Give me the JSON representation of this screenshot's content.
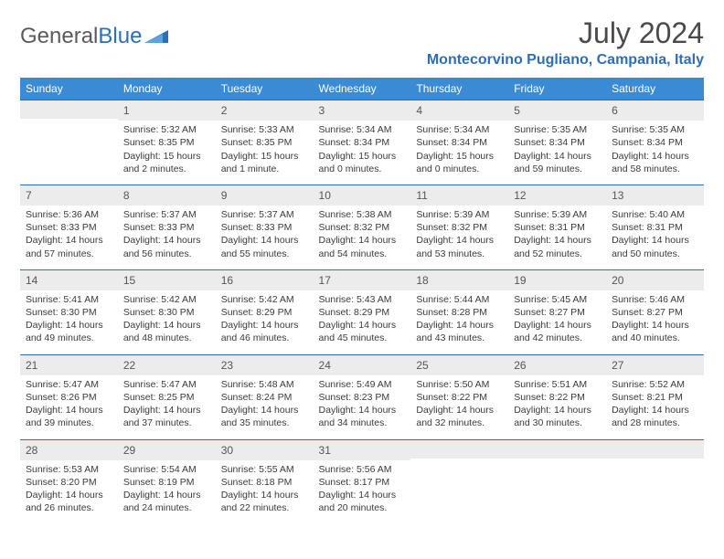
{
  "logo": {
    "text1": "General",
    "text2": "Blue"
  },
  "header": {
    "month_title": "July 2024",
    "location": "Montecorvino Pugliano, Campania, Italy"
  },
  "colors": {
    "header_blue": "#3b8bd4",
    "accent_blue": "#2d6fb5",
    "daynum_bg": "#ececec",
    "text_gray": "#3a3a3a"
  },
  "days_of_week": [
    "Sunday",
    "Monday",
    "Tuesday",
    "Wednesday",
    "Thursday",
    "Friday",
    "Saturday"
  ],
  "weeks": [
    [
      null,
      {
        "n": "1",
        "sunrise": "Sunrise: 5:32 AM",
        "sunset": "Sunset: 8:35 PM",
        "day1": "Daylight: 15 hours",
        "day2": "and 2 minutes."
      },
      {
        "n": "2",
        "sunrise": "Sunrise: 5:33 AM",
        "sunset": "Sunset: 8:35 PM",
        "day1": "Daylight: 15 hours",
        "day2": "and 1 minute."
      },
      {
        "n": "3",
        "sunrise": "Sunrise: 5:34 AM",
        "sunset": "Sunset: 8:34 PM",
        "day1": "Daylight: 15 hours",
        "day2": "and 0 minutes."
      },
      {
        "n": "4",
        "sunrise": "Sunrise: 5:34 AM",
        "sunset": "Sunset: 8:34 PM",
        "day1": "Daylight: 15 hours",
        "day2": "and 0 minutes."
      },
      {
        "n": "5",
        "sunrise": "Sunrise: 5:35 AM",
        "sunset": "Sunset: 8:34 PM",
        "day1": "Daylight: 14 hours",
        "day2": "and 59 minutes."
      },
      {
        "n": "6",
        "sunrise": "Sunrise: 5:35 AM",
        "sunset": "Sunset: 8:34 PM",
        "day1": "Daylight: 14 hours",
        "day2": "and 58 minutes."
      }
    ],
    [
      {
        "n": "7",
        "sunrise": "Sunrise: 5:36 AM",
        "sunset": "Sunset: 8:33 PM",
        "day1": "Daylight: 14 hours",
        "day2": "and 57 minutes."
      },
      {
        "n": "8",
        "sunrise": "Sunrise: 5:37 AM",
        "sunset": "Sunset: 8:33 PM",
        "day1": "Daylight: 14 hours",
        "day2": "and 56 minutes."
      },
      {
        "n": "9",
        "sunrise": "Sunrise: 5:37 AM",
        "sunset": "Sunset: 8:33 PM",
        "day1": "Daylight: 14 hours",
        "day2": "and 55 minutes."
      },
      {
        "n": "10",
        "sunrise": "Sunrise: 5:38 AM",
        "sunset": "Sunset: 8:32 PM",
        "day1": "Daylight: 14 hours",
        "day2": "and 54 minutes."
      },
      {
        "n": "11",
        "sunrise": "Sunrise: 5:39 AM",
        "sunset": "Sunset: 8:32 PM",
        "day1": "Daylight: 14 hours",
        "day2": "and 53 minutes."
      },
      {
        "n": "12",
        "sunrise": "Sunrise: 5:39 AM",
        "sunset": "Sunset: 8:31 PM",
        "day1": "Daylight: 14 hours",
        "day2": "and 52 minutes."
      },
      {
        "n": "13",
        "sunrise": "Sunrise: 5:40 AM",
        "sunset": "Sunset: 8:31 PM",
        "day1": "Daylight: 14 hours",
        "day2": "and 50 minutes."
      }
    ],
    [
      {
        "n": "14",
        "sunrise": "Sunrise: 5:41 AM",
        "sunset": "Sunset: 8:30 PM",
        "day1": "Daylight: 14 hours",
        "day2": "and 49 minutes."
      },
      {
        "n": "15",
        "sunrise": "Sunrise: 5:42 AM",
        "sunset": "Sunset: 8:30 PM",
        "day1": "Daylight: 14 hours",
        "day2": "and 48 minutes."
      },
      {
        "n": "16",
        "sunrise": "Sunrise: 5:42 AM",
        "sunset": "Sunset: 8:29 PM",
        "day1": "Daylight: 14 hours",
        "day2": "and 46 minutes."
      },
      {
        "n": "17",
        "sunrise": "Sunrise: 5:43 AM",
        "sunset": "Sunset: 8:29 PM",
        "day1": "Daylight: 14 hours",
        "day2": "and 45 minutes."
      },
      {
        "n": "18",
        "sunrise": "Sunrise: 5:44 AM",
        "sunset": "Sunset: 8:28 PM",
        "day1": "Daylight: 14 hours",
        "day2": "and 43 minutes."
      },
      {
        "n": "19",
        "sunrise": "Sunrise: 5:45 AM",
        "sunset": "Sunset: 8:27 PM",
        "day1": "Daylight: 14 hours",
        "day2": "and 42 minutes."
      },
      {
        "n": "20",
        "sunrise": "Sunrise: 5:46 AM",
        "sunset": "Sunset: 8:27 PM",
        "day1": "Daylight: 14 hours",
        "day2": "and 40 minutes."
      }
    ],
    [
      {
        "n": "21",
        "sunrise": "Sunrise: 5:47 AM",
        "sunset": "Sunset: 8:26 PM",
        "day1": "Daylight: 14 hours",
        "day2": "and 39 minutes."
      },
      {
        "n": "22",
        "sunrise": "Sunrise: 5:47 AM",
        "sunset": "Sunset: 8:25 PM",
        "day1": "Daylight: 14 hours",
        "day2": "and 37 minutes."
      },
      {
        "n": "23",
        "sunrise": "Sunrise: 5:48 AM",
        "sunset": "Sunset: 8:24 PM",
        "day1": "Daylight: 14 hours",
        "day2": "and 35 minutes."
      },
      {
        "n": "24",
        "sunrise": "Sunrise: 5:49 AM",
        "sunset": "Sunset: 8:23 PM",
        "day1": "Daylight: 14 hours",
        "day2": "and 34 minutes."
      },
      {
        "n": "25",
        "sunrise": "Sunrise: 5:50 AM",
        "sunset": "Sunset: 8:22 PM",
        "day1": "Daylight: 14 hours",
        "day2": "and 32 minutes."
      },
      {
        "n": "26",
        "sunrise": "Sunrise: 5:51 AM",
        "sunset": "Sunset: 8:22 PM",
        "day1": "Daylight: 14 hours",
        "day2": "and 30 minutes."
      },
      {
        "n": "27",
        "sunrise": "Sunrise: 5:52 AM",
        "sunset": "Sunset: 8:21 PM",
        "day1": "Daylight: 14 hours",
        "day2": "and 28 minutes."
      }
    ],
    [
      {
        "n": "28",
        "sunrise": "Sunrise: 5:53 AM",
        "sunset": "Sunset: 8:20 PM",
        "day1": "Daylight: 14 hours",
        "day2": "and 26 minutes."
      },
      {
        "n": "29",
        "sunrise": "Sunrise: 5:54 AM",
        "sunset": "Sunset: 8:19 PM",
        "day1": "Daylight: 14 hours",
        "day2": "and 24 minutes."
      },
      {
        "n": "30",
        "sunrise": "Sunrise: 5:55 AM",
        "sunset": "Sunset: 8:18 PM",
        "day1": "Daylight: 14 hours",
        "day2": "and 22 minutes."
      },
      {
        "n": "31",
        "sunrise": "Sunrise: 5:56 AM",
        "sunset": "Sunset: 8:17 PM",
        "day1": "Daylight: 14 hours",
        "day2": "and 20 minutes."
      },
      null,
      null,
      null
    ]
  ]
}
